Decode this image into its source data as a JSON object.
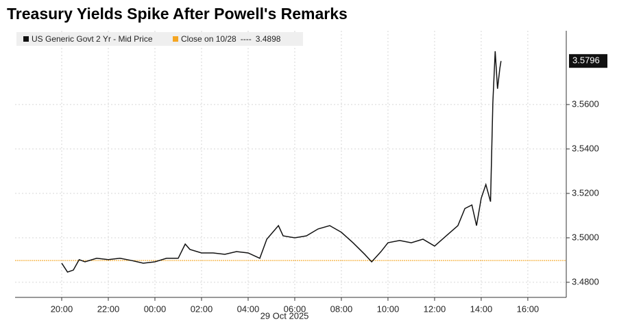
{
  "chart_data": {
    "type": "line",
    "title": "Treasury Yields Spike After Powell's Remarks",
    "x_sublabel": "29 Oct 2025",
    "x": [
      0,
      0.25,
      0.5,
      0.75,
      1,
      1.5,
      2,
      2.5,
      3,
      3.5,
      4,
      4.5,
      5,
      5.3,
      5.5,
      6,
      6.5,
      7,
      7.5,
      8,
      8.5,
      8.8,
      9.3,
      9.5,
      10,
      10.5,
      11,
      11.5,
      12,
      12.5,
      13,
      13.3,
      13.7,
      14,
      14.5,
      15,
      15.5,
      16,
      16.5,
      17,
      17.3,
      17.6,
      17.8,
      18,
      18.2,
      18.4,
      18.5,
      18.6,
      18.7,
      18.8,
      18.85
    ],
    "series": [
      {
        "name": "US Generic Govt 2 Yr - Mid Price",
        "color": "#111111",
        "values": [
          3.4886,
          3.4846,
          3.4855,
          3.4902,
          3.4892,
          3.4908,
          3.4902,
          3.4908,
          3.4898,
          3.4886,
          3.4892,
          3.4908,
          3.4908,
          3.4972,
          3.4948,
          3.4932,
          3.4932,
          3.4926,
          3.4938,
          3.4932,
          3.4908,
          3.4994,
          3.5055,
          3.5009,
          3.5,
          3.5009,
          3.504,
          3.5055,
          3.5025,
          3.4978,
          3.4926,
          3.4892,
          3.4938,
          3.4978,
          3.4988,
          3.4978,
          3.4994,
          3.4963,
          3.5009,
          3.5055,
          3.5132,
          3.5148,
          3.5055,
          3.5178,
          3.524,
          3.5163,
          3.5609,
          3.584,
          3.5671,
          3.5763,
          3.5796
        ]
      }
    ],
    "close": {
      "name": "Close on 10/28",
      "separator": "----",
      "value": 3.4898,
      "color": "#f5a623"
    },
    "xlim": [
      -2,
      21.65
    ],
    "xticks": [
      {
        "value": 0,
        "label": "20:00"
      },
      {
        "value": 2,
        "label": "22:00"
      },
      {
        "value": 4,
        "label": "00:00"
      },
      {
        "value": 6,
        "label": "02:00"
      },
      {
        "value": 8,
        "label": "04:00"
      },
      {
        "value": 10,
        "label": "06:00"
      },
      {
        "value": 12,
        "label": "08:00"
      },
      {
        "value": 14,
        "label": "10:00"
      },
      {
        "value": 16,
        "label": "12:00"
      },
      {
        "value": 18,
        "label": "14:00"
      },
      {
        "value": 20,
        "label": "16:00"
      }
    ],
    "ylim": [
      3.4732,
      3.5932
    ],
    "yticks": [
      {
        "value": 3.48,
        "label": "3.4800"
      },
      {
        "value": 3.5,
        "label": "3.5000"
      },
      {
        "value": 3.52,
        "label": "3.5200"
      },
      {
        "value": 3.54,
        "label": "3.5400"
      },
      {
        "value": 3.56,
        "label": "3.5600"
      }
    ],
    "grid": true
  }
}
